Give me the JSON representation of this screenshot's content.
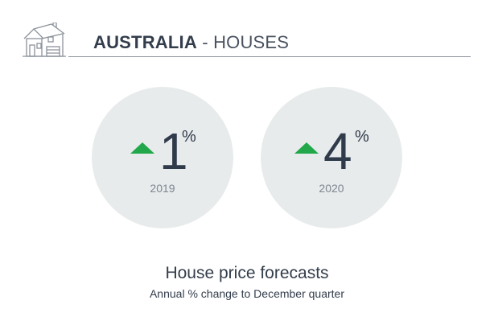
{
  "header": {
    "country": "AUSTRALIA",
    "separator": " - ",
    "property_type": "HOUSES",
    "icon": "house-icon"
  },
  "forecasts": [
    {
      "year": "2019",
      "value": "1",
      "unit": "%",
      "direction": "up"
    },
    {
      "year": "2020",
      "value": "4",
      "unit": "%",
      "direction": "up"
    }
  ],
  "caption": {
    "title": "House price forecasts",
    "subtitle": "Annual % change to December quarter"
  },
  "colors": {
    "up_arrow": "#22a84a",
    "circle_background": "#e8ebec",
    "text_dark": "#2f3a4b",
    "text_muted": "#7d8590"
  }
}
